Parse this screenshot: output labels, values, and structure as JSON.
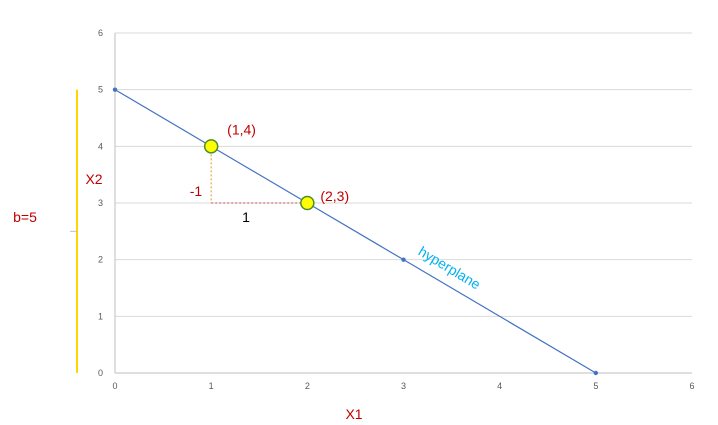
{
  "chart_data": {
    "type": "scatter",
    "xlabel": "X1",
    "ylabel": "X2",
    "xlim": [
      0,
      6
    ],
    "ylim": [
      0,
      6
    ],
    "xticks": [
      "0",
      "1",
      "2",
      "3",
      "4",
      "5",
      "6"
    ],
    "yticks": [
      "0",
      "1",
      "2",
      "3",
      "4",
      "5",
      "6"
    ],
    "grid": "horizontal",
    "line": {
      "x": [
        0,
        1,
        2,
        3,
        5
      ],
      "y": [
        5,
        4,
        3,
        2,
        0
      ],
      "color": "#4472c4"
    },
    "line_label": "hyperplane",
    "highlighted_points": [
      {
        "x": 1,
        "y": 4,
        "label": "(1,4)"
      },
      {
        "x": 2,
        "y": 3,
        "label": "(2,3)"
      }
    ],
    "highlight_color": "#ffff00",
    "slope_triangle": {
      "from": [
        1,
        4
      ],
      "corner": [
        1,
        3
      ],
      "to": [
        2,
        3
      ],
      "rise_label": "-1",
      "run_label": "1",
      "color": "#d4a017"
    },
    "intercept": {
      "y_from": 0,
      "y_to": 5,
      "label": "b=5",
      "color": "#ffd700"
    }
  }
}
